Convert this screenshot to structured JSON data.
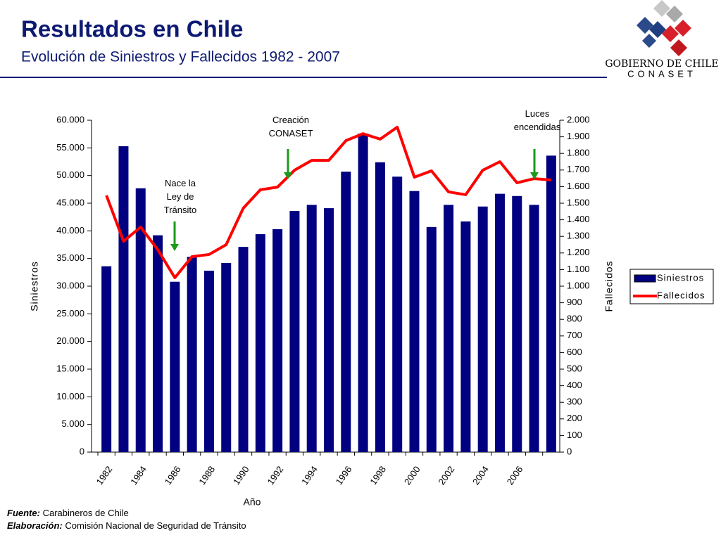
{
  "header": {
    "title": "Resultados en Chile",
    "subtitle": "Evolución de Siniestros y Fallecidos 1982 - 2007"
  },
  "logo": {
    "line1": "GOBIERNO DE CHILE",
    "line2": "CONASET"
  },
  "chart_data": {
    "type": "bar",
    "categories": [
      "1982",
      null,
      "1984",
      null,
      "1986",
      null,
      "1988",
      null,
      "1990",
      null,
      "1992",
      null,
      "1994",
      null,
      "1996",
      null,
      "1998",
      null,
      "2000",
      null,
      "2002",
      null,
      "2004",
      null,
      "2006",
      null,
      null
    ],
    "series": [
      {
        "name": "Siniestros",
        "type": "bar",
        "color": "#000080",
        "values": [
          33600,
          55300,
          47700,
          39200,
          30800,
          35300,
          32800,
          34200,
          37100,
          39400,
          40300,
          43600,
          44700,
          44100,
          50700,
          57600,
          52400,
          49800,
          47200,
          40700,
          44700,
          41700,
          44400,
          46700,
          46300,
          44700,
          53600
        ]
      },
      {
        "name": "Fallecidos",
        "type": "line",
        "axis": "y2",
        "color": "#ff0000",
        "values": [
          1547,
          1271,
          1356,
          1220,
          1051,
          1178,
          1191,
          1250,
          1470,
          1581,
          1597,
          1699,
          1758,
          1758,
          1877,
          1919,
          1886,
          1958,
          1657,
          1695,
          1568,
          1551,
          1699,
          1750,
          1623,
          1648,
          1640
        ]
      }
    ],
    "ylim": [
      0,
      60000
    ],
    "yticks": [
      0,
      {
        "value": 5000,
        "label": "5.000"
      },
      {
        "value": 10000,
        "label": "10.000"
      },
      {
        "value": 15000,
        "label": "15.000"
      },
      {
        "value": 20000,
        "label": "20.000"
      },
      {
        "value": 25000,
        "label": "25.000"
      },
      {
        "value": 30000,
        "label": "30.000"
      },
      {
        "value": 35000,
        "label": "35.000"
      },
      {
        "value": 40000,
        "label": "40.000"
      },
      {
        "value": 45000,
        "label": "45.000"
      },
      {
        "value": 50000,
        "label": "50.000"
      },
      {
        "value": 55000,
        "label": "55.000"
      },
      {
        "value": 60000,
        "label": "60.000"
      }
    ],
    "y2lim": [
      0,
      2000
    ],
    "y2ticks": [
      0,
      100,
      200,
      300,
      400,
      500,
      600,
      700,
      800,
      900,
      {
        "value": 1000,
        "label": "1.000"
      },
      {
        "value": 1100,
        "label": "1.100"
      },
      {
        "value": 1200,
        "label": "1.200"
      },
      {
        "value": 1300,
        "label": "1.300"
      },
      {
        "value": 1400,
        "label": "1.400"
      },
      {
        "value": 1500,
        "label": "1.500"
      },
      {
        "value": 1600,
        "label": "1.600"
      },
      {
        "value": 1700,
        "label": "1.700"
      },
      {
        "value": 1800,
        "label": "1.800"
      },
      {
        "value": 1900,
        "label": "1.900"
      },
      {
        "value": 2000,
        "label": "2.000"
      }
    ],
    "ylabel": "Siniestros",
    "y2label": "Fallecidos",
    "xlabel": "Año",
    "legend": "right",
    "annotations": [
      {
        "lines": [
          "Nace la",
          "Ley de",
          "Tránsito"
        ]
      },
      {
        "lines": [
          "Creación",
          "CONASET"
        ]
      },
      {
        "lines": [
          "Luces",
          "encendidas"
        ]
      }
    ]
  },
  "footer": {
    "source_label": "Fuente:",
    "source": "Carabineros de Chile",
    "made_label": "Elaboración:",
    "made": "Comisión Nacional de Seguridad de Tránsito"
  }
}
